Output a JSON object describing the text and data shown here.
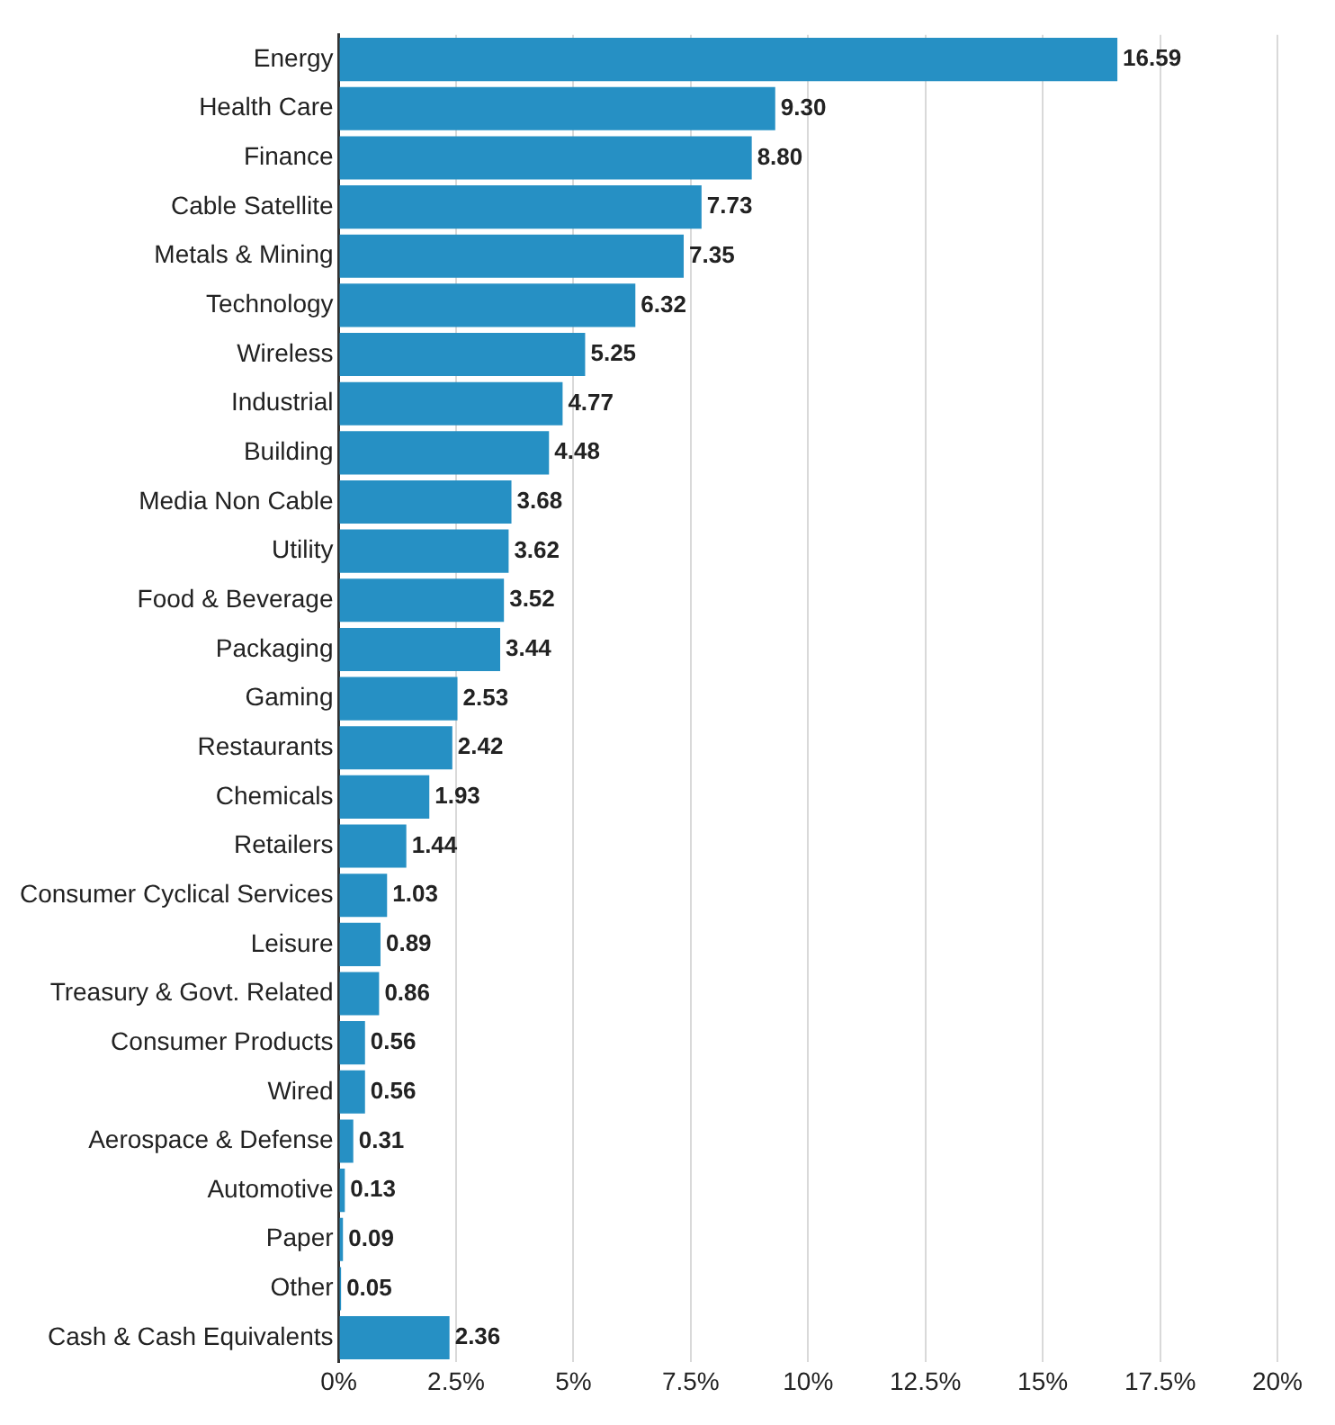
{
  "chart_data": {
    "type": "bar",
    "orientation": "horizontal",
    "categories": [
      "Energy",
      "Health Care",
      "Finance",
      "Cable Satellite",
      "Metals & Mining",
      "Technology",
      "Wireless",
      "Industrial",
      "Building",
      "Media Non Cable",
      "Utility",
      "Food & Beverage",
      "Packaging",
      "Gaming",
      "Restaurants",
      "Chemicals",
      "Retailers",
      "Consumer Cyclical Services",
      "Leisure",
      "Treasury & Govt. Related",
      "Consumer Products",
      "Wired",
      "Aerospace & Defense",
      "Automotive",
      "Paper",
      "Other",
      "Cash & Cash Equivalents"
    ],
    "values": [
      16.59,
      9.3,
      8.8,
      7.73,
      7.35,
      6.32,
      5.25,
      4.77,
      4.48,
      3.68,
      3.62,
      3.52,
      3.44,
      2.53,
      2.42,
      1.93,
      1.44,
      1.03,
      0.89,
      0.86,
      0.56,
      0.56,
      0.31,
      0.13,
      0.09,
      0.05,
      2.36
    ],
    "value_labels": [
      "16.59",
      "9.30",
      "8.80",
      "7.73",
      "7.35",
      "6.32",
      "5.25",
      "4.77",
      "4.48",
      "3.68",
      "3.62",
      "3.52",
      "3.44",
      "2.53",
      "2.42",
      "1.93",
      "1.44",
      "1.03",
      "0.89",
      "0.86",
      "0.56",
      "0.56",
      "0.31",
      "0.13",
      "0.09",
      "0.05",
      "2.36"
    ],
    "color": "#2690c4",
    "xlim": [
      0,
      20
    ],
    "xticks": [
      {
        "value": 0,
        "label": "0%"
      },
      {
        "value": 2.5,
        "label": "2.5%"
      },
      {
        "value": 5,
        "label": "5%"
      },
      {
        "value": 7.5,
        "label": "7.5%"
      },
      {
        "value": 10,
        "label": "10%"
      },
      {
        "value": 12.5,
        "label": "12.5%"
      },
      {
        "value": 15,
        "label": "15%"
      },
      {
        "value": 17.5,
        "label": "17.5%"
      },
      {
        "value": 20,
        "label": "20%"
      }
    ],
    "grid": "x",
    "legend": false
  }
}
